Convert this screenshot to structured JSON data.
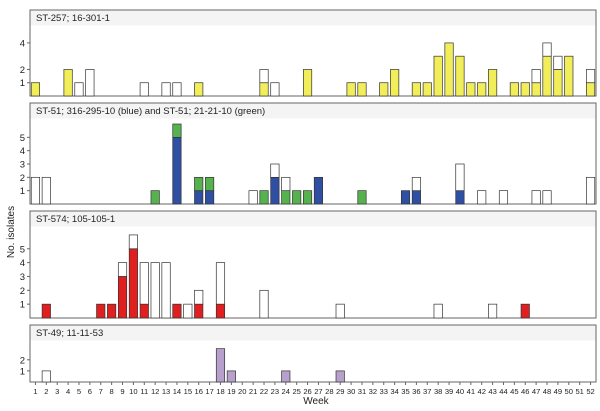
{
  "colors": {
    "yellow": "#f2ee5a",
    "blue": "#2f4fa3",
    "green": "#56b24e",
    "red": "#e02020",
    "purple": "#b8a0cc",
    "white": "#ffffff",
    "frame": "#666666",
    "panel_bg": "#f4f4f4"
  },
  "chart_data": {
    "type": "bar",
    "stacked": true,
    "xlabel": "Week",
    "ylabel": "No. isolates",
    "weeks": [
      1,
      2,
      3,
      4,
      5,
      6,
      7,
      8,
      9,
      10,
      11,
      12,
      13,
      14,
      15,
      16,
      17,
      18,
      19,
      20,
      21,
      22,
      23,
      24,
      25,
      26,
      27,
      28,
      29,
      30,
      31,
      32,
      33,
      34,
      35,
      36,
      37,
      38,
      39,
      40,
      41,
      42,
      43,
      44,
      45,
      46,
      47,
      48,
      49,
      50,
      51,
      52
    ],
    "panels": [
      {
        "title": "ST-257; 16-301-1",
        "yticks": [
          1,
          2,
          4
        ],
        "ylim": [
          0,
          5.2
        ],
        "series": [
          {
            "color": "yellow",
            "points": [
              [
                1,
                1
              ],
              [
                4,
                2
              ],
              [
                16,
                1
              ],
              [
                22,
                1
              ],
              [
                26,
                2
              ],
              [
                30,
                1
              ],
              [
                31,
                1
              ],
              [
                33,
                1
              ],
              [
                34,
                2
              ],
              [
                36,
                1
              ],
              [
                37,
                1
              ],
              [
                38,
                3
              ],
              [
                39,
                4
              ],
              [
                40,
                3
              ],
              [
                41,
                1
              ],
              [
                42,
                1
              ],
              [
                43,
                2
              ],
              [
                45,
                1
              ],
              [
                46,
                1
              ],
              [
                47,
                1
              ],
              [
                48,
                3
              ],
              [
                49,
                2
              ],
              [
                50,
                3
              ],
              [
                52,
                1
              ]
            ]
          },
          {
            "color": "white",
            "points": [
              [
                5,
                1
              ],
              [
                6,
                2
              ],
              [
                11,
                1
              ],
              [
                13,
                1
              ],
              [
                14,
                1
              ],
              [
                22,
                1
              ],
              [
                23,
                1
              ],
              [
                47,
                1
              ],
              [
                48,
                1
              ],
              [
                49,
                1
              ],
              [
                52,
                1
              ]
            ]
          }
        ]
      },
      {
        "title": "ST-51; 316-295-10 (blue) and ST-51; 21-21-10 (green)",
        "yticks": [
          1,
          2,
          3,
          4,
          5
        ],
        "ylim": [
          0,
          6.3
        ],
        "series": [
          {
            "color": "blue",
            "points": [
              [
                14,
                5
              ],
              [
                16,
                1
              ],
              [
                17,
                1
              ],
              [
                23,
                2
              ],
              [
                27,
                2
              ],
              [
                35,
                1
              ],
              [
                36,
                1
              ],
              [
                40,
                1
              ]
            ]
          },
          {
            "color": "green",
            "points": [
              [
                12,
                1
              ],
              [
                14,
                1
              ],
              [
                16,
                1
              ],
              [
                17,
                1
              ],
              [
                22,
                1
              ],
              [
                24,
                1
              ],
              [
                25,
                1
              ],
              [
                26,
                1
              ],
              [
                31,
                1
              ]
            ]
          },
          {
            "color": "white",
            "points": [
              [
                1,
                2
              ],
              [
                2,
                2
              ],
              [
                21,
                1
              ],
              [
                23,
                1
              ],
              [
                24,
                1
              ],
              [
                36,
                1
              ],
              [
                40,
                2
              ],
              [
                42,
                1
              ],
              [
                44,
                1
              ],
              [
                47,
                1
              ],
              [
                48,
                1
              ],
              [
                52,
                2
              ]
            ]
          }
        ]
      },
      {
        "title": "ST-574; 105-105-1",
        "yticks": [
          1,
          2,
          3,
          4,
          5
        ],
        "ylim": [
          0,
          6.5
        ],
        "series": [
          {
            "color": "red",
            "points": [
              [
                2,
                1
              ],
              [
                7,
                1
              ],
              [
                8,
                1
              ],
              [
                9,
                3
              ],
              [
                10,
                5
              ],
              [
                11,
                1
              ],
              [
                14,
                1
              ],
              [
                16,
                1
              ],
              [
                18,
                1
              ],
              [
                46,
                1
              ]
            ]
          },
          {
            "color": "white",
            "points": [
              [
                9,
                1
              ],
              [
                10,
                1
              ],
              [
                11,
                3
              ],
              [
                12,
                4
              ],
              [
                13,
                4
              ],
              [
                15,
                1
              ],
              [
                16,
                1
              ],
              [
                18,
                3
              ],
              [
                22,
                2
              ],
              [
                29,
                1
              ],
              [
                38,
                1
              ],
              [
                43,
                1
              ]
            ]
          }
        ]
      },
      {
        "title": "ST-49; 11-11-53",
        "yticks": [
          1,
          2
        ],
        "ylim": [
          0,
          3.6
        ],
        "series": [
          {
            "color": "purple",
            "points": [
              [
                18,
                3
              ],
              [
                19,
                1
              ],
              [
                24,
                1
              ],
              [
                29,
                1
              ]
            ]
          },
          {
            "color": "white",
            "points": [
              [
                2,
                1
              ]
            ]
          }
        ]
      }
    ]
  }
}
